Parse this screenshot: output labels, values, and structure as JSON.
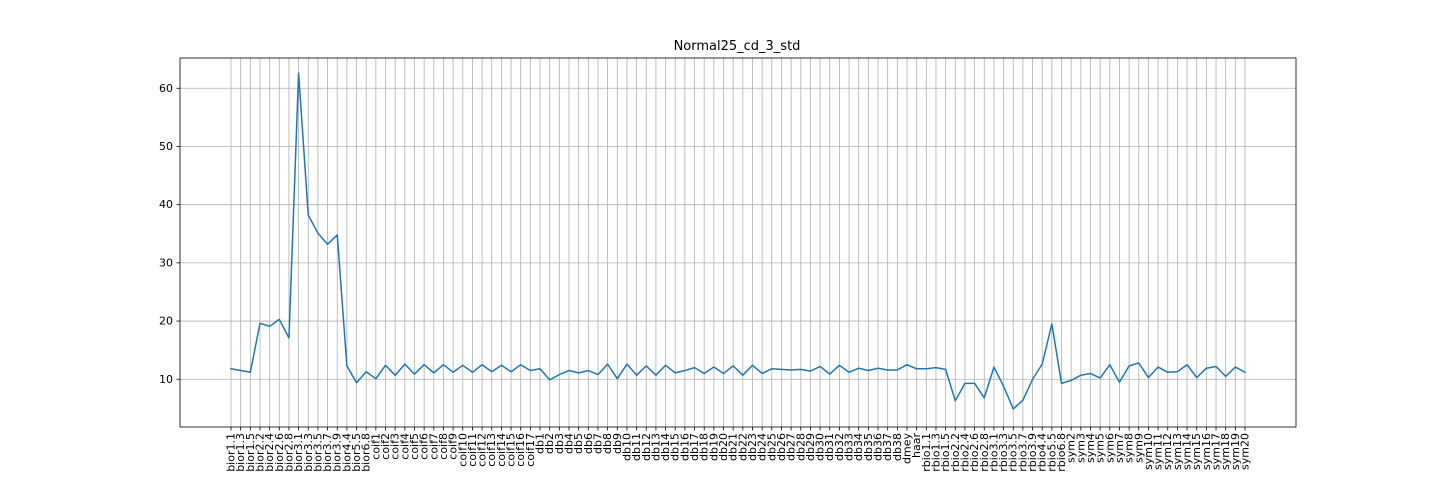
{
  "chart_data": {
    "type": "line",
    "title": "Normal25_cd_3_std",
    "xlabel": "",
    "ylabel": "",
    "ylim": [
      1.8,
      65.2
    ],
    "yticks": [
      10,
      20,
      30,
      40,
      50,
      60
    ],
    "grid": true,
    "colors": {
      "line": "#1f77b4",
      "grid": "#b0b0b0",
      "axes": "#000000"
    },
    "categories": [
      "bior1.1",
      "bior1.3",
      "bior1.5",
      "bior2.2",
      "bior2.4",
      "bior2.6",
      "bior2.8",
      "bior3.1",
      "bior3.3",
      "bior3.5",
      "bior3.7",
      "bior3.9",
      "bior4.4",
      "bior5.5",
      "bior6.8",
      "coif1",
      "coif2",
      "coif3",
      "coif4",
      "coif5",
      "coif6",
      "coif7",
      "coif8",
      "coif9",
      "coif10",
      "coif11",
      "coif12",
      "coif13",
      "coif14",
      "coif15",
      "coif16",
      "coif17",
      "db1",
      "db2",
      "db3",
      "db4",
      "db5",
      "db6",
      "db7",
      "db8",
      "db9",
      "db10",
      "db11",
      "db12",
      "db13",
      "db14",
      "db15",
      "db16",
      "db17",
      "db18",
      "db19",
      "db20",
      "db21",
      "db22",
      "db23",
      "db24",
      "db25",
      "db26",
      "db27",
      "db28",
      "db29",
      "db30",
      "db31",
      "db32",
      "db33",
      "db34",
      "db35",
      "db36",
      "db37",
      "db38",
      "dmey",
      "haar",
      "rbio1.1",
      "rbio1.3",
      "rbio1.5",
      "rbio2.2",
      "rbio2.4",
      "rbio2.6",
      "rbio2.8",
      "rbio3.1",
      "rbio3.3",
      "rbio3.5",
      "rbio3.7",
      "rbio3.9",
      "rbio4.4",
      "rbio5.5",
      "rbio6.8",
      "sym2",
      "sym3",
      "sym4",
      "sym5",
      "sym6",
      "sym7",
      "sym8",
      "sym9",
      "sym10",
      "sym11",
      "sym12",
      "sym13",
      "sym14",
      "sym15",
      "sym16",
      "sym17",
      "sym18",
      "sym19",
      "sym20"
    ],
    "series": [
      {
        "values": [
          11.8,
          11.5,
          11.2,
          19.6,
          19.1,
          20.3,
          17.1,
          62.6,
          38.2,
          35.1,
          33.2,
          34.8,
          12.3,
          9.4,
          11.3,
          10.1,
          12.4,
          10.7,
          12.6,
          10.9,
          12.5,
          11.1,
          12.5,
          11.2,
          12.4,
          11.2,
          12.5,
          11.3,
          12.4,
          11.3,
          12.5,
          11.5,
          11.8,
          9.9,
          10.8,
          11.5,
          11.1,
          11.5,
          10.8,
          12.6,
          10.1,
          12.6,
          10.7,
          12.3,
          10.7,
          12.4,
          11.1,
          11.5,
          12.0,
          11.0,
          12.1,
          11.0,
          12.3,
          10.7,
          12.4,
          11.0,
          11.8,
          11.7,
          11.6,
          11.7,
          11.4,
          12.2,
          10.9,
          12.4,
          11.2,
          11.9,
          11.5,
          11.9,
          11.6,
          11.6,
          12.5,
          11.8,
          11.8,
          12.0,
          11.7,
          6.3,
          9.3,
          9.3,
          6.8,
          12.1,
          8.8,
          4.9,
          6.4,
          10.0,
          12.6,
          19.5,
          9.3,
          9.8,
          10.7,
          11.0,
          10.2,
          12.5,
          9.5,
          12.3,
          12.8,
          10.3,
          12.1,
          11.2,
          11.3,
          12.5,
          10.3,
          11.9,
          12.2,
          10.5,
          12.1,
          11.2
        ]
      }
    ]
  }
}
